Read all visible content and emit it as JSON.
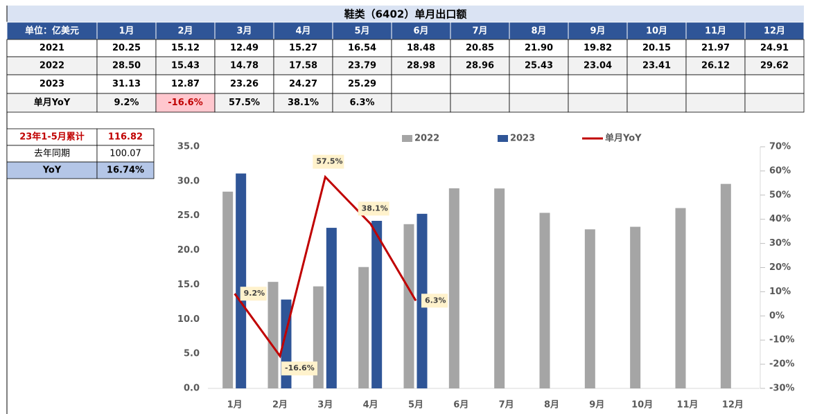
{
  "table": {
    "title": "鞋类（6402）单月出口额",
    "header": [
      "单位：亿美元",
      "1月",
      "2月",
      "3月",
      "4月",
      "5月",
      "6月",
      "7月",
      "8月",
      "9月",
      "10月",
      "11月",
      "12月"
    ],
    "rows": [
      [
        "2021",
        "20.25",
        "15.12",
        "12.49",
        "15.27",
        "16.54",
        "18.48",
        "20.85",
        "21.90",
        "19.82",
        "20.15",
        "21.97",
        "24.91"
      ],
      [
        "2022",
        "28.50",
        "15.43",
        "14.78",
        "17.58",
        "23.79",
        "28.98",
        "28.96",
        "25.43",
        "23.04",
        "23.41",
        "26.12",
        "29.62"
      ],
      [
        "2023",
        "31.13",
        "12.87",
        "23.26",
        "24.27",
        "25.29"
      ],
      [
        "单月YoY",
        "9.2%",
        "-16.6%",
        "57.5%",
        "38.1%",
        "6.3%"
      ]
    ]
  },
  "summary": {
    "rows": [
      [
        "23年1-5月累计",
        "116.82"
      ],
      [
        "去年同期",
        "100.07"
      ],
      [
        "YoY",
        "16.74%"
      ]
    ]
  },
  "chart_data": {
    "type": "bar",
    "categories": [
      "1月",
      "2月",
      "3月",
      "4月",
      "5月",
      "6月",
      "7月",
      "8月",
      "9月",
      "10月",
      "11月",
      "12月"
    ],
    "series": [
      {
        "name": "2022",
        "color": "#a5a5a5",
        "values": [
          28.5,
          15.43,
          14.78,
          17.58,
          23.79,
          28.98,
          28.96,
          25.43,
          23.04,
          23.41,
          26.12,
          29.62
        ]
      },
      {
        "name": "2023",
        "color": "#2f5597",
        "values": [
          31.13,
          12.87,
          23.26,
          24.27,
          25.29,
          null,
          null,
          null,
          null,
          null,
          null,
          null
        ]
      },
      {
        "name": "单月YoY",
        "color": "#c00000",
        "type": "line",
        "axis": "y2",
        "values": [
          9.2,
          -16.6,
          57.5,
          38.1,
          6.3,
          null,
          null,
          null,
          null,
          null,
          null,
          null
        ],
        "value_labels": [
          "9.2%",
          "-16.6%",
          "57.5%",
          "38.1%",
          "6.3%",
          null,
          null,
          null,
          null,
          null,
          null,
          null
        ]
      }
    ],
    "ylim": [
      0,
      35
    ],
    "yticks": [
      {
        "value": 0,
        "label": "0.0"
      },
      {
        "value": 5,
        "label": "5.0"
      },
      {
        "value": 10,
        "label": "10.0"
      },
      {
        "value": 15,
        "label": "15.0"
      },
      {
        "value": 20,
        "label": "20.0"
      },
      {
        "value": 25,
        "label": "25.0"
      },
      {
        "value": 30,
        "label": "30.0"
      },
      {
        "value": 35,
        "label": "35.0"
      }
    ],
    "y2lim": [
      -30,
      70
    ],
    "y2ticks": [
      {
        "value": -30,
        "label": "-30%"
      },
      {
        "value": -20,
        "label": "-20%"
      },
      {
        "value": -10,
        "label": "-10%"
      },
      {
        "value": 0,
        "label": "0%"
      },
      {
        "value": 10,
        "label": "10%"
      },
      {
        "value": 20,
        "label": "20%"
      },
      {
        "value": 30,
        "label": "30%"
      },
      {
        "value": 40,
        "label": "40%"
      },
      {
        "value": 50,
        "label": "50%"
      },
      {
        "value": 60,
        "label": "60%"
      },
      {
        "value": 70,
        "label": "70%"
      }
    ],
    "legend": "top"
  }
}
